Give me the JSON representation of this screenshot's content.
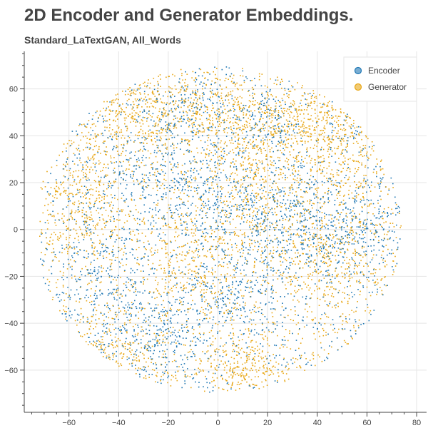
{
  "page": {
    "title": "2D Encoder and Generator Embeddings.",
    "subtitle": "Standard_LaTextGAN, All_Words"
  },
  "chart_data": {
    "type": "scatter",
    "title": "2D Encoder and Generator Embeddings.",
    "subtitle": "Standard_LaTextGAN, All_Words",
    "xlabel": "",
    "ylabel": "",
    "xlim": [
      -78,
      84
    ],
    "ylim": [
      -78,
      76
    ],
    "x_ticks": [
      -60,
      -40,
      -20,
      0,
      20,
      40,
      60,
      80
    ],
    "y_ticks": [
      -60,
      -40,
      -20,
      0,
      20,
      40,
      60
    ],
    "x_tick_labels": [
      "−60",
      "−40",
      "−20",
      "0",
      "20",
      "40",
      "60",
      "80"
    ],
    "y_tick_labels": [
      "−60",
      "−40",
      "−20",
      "0",
      "20",
      "40",
      "60"
    ],
    "grid": true,
    "legend_position": "top-right",
    "colors": {
      "encoder": "#1f77b4",
      "generator": "#e8a716",
      "grid": "#e5e5e5",
      "axis": "#444444"
    },
    "series": [
      {
        "name": "Encoder",
        "color": "#1f77b4",
        "approx_points": 9000,
        "note_regions": [
          {
            "cx": -45,
            "cy": -25,
            "sx": 13,
            "sy": 16,
            "w": 3.0
          },
          {
            "cx": -20,
            "cy": -45,
            "sx": 10,
            "sy": 10,
            "w": 2.0
          },
          {
            "cx": 0,
            "cy": 15,
            "sx": 16,
            "sy": 14,
            "w": 3.0
          },
          {
            "cx": -10,
            "cy": 50,
            "sx": 10,
            "sy": 8,
            "w": 1.5
          },
          {
            "cx": 30,
            "cy": 0,
            "sx": 12,
            "sy": 12,
            "w": 2.2
          },
          {
            "cx": 58,
            "cy": 0,
            "sx": 10,
            "sy": 12,
            "w": 2.5
          },
          {
            "cx": 10,
            "cy": -30,
            "sx": 10,
            "sy": 8,
            "w": 1.5
          },
          {
            "cx": 20,
            "cy": 45,
            "sx": 6,
            "sy": 8,
            "w": 0.8
          },
          {
            "cx": -30,
            "cy": 20,
            "sx": 12,
            "sy": 12,
            "w": 1.5
          }
        ]
      },
      {
        "name": "Generator",
        "color": "#e8a716",
        "approx_points": 9000,
        "note_regions": [
          {
            "cx": -30,
            "cy": 50,
            "sx": 14,
            "sy": 10,
            "w": 2.5
          },
          {
            "cx": 30,
            "cy": 45,
            "sx": 14,
            "sy": 12,
            "w": 2.5
          },
          {
            "cx": 50,
            "cy": 35,
            "sx": 12,
            "sy": 12,
            "w": 1.8
          },
          {
            "cx": 45,
            "cy": -10,
            "sx": 14,
            "sy": 14,
            "w": 2.2
          },
          {
            "cx": 10,
            "cy": -60,
            "sx": 10,
            "sy": 7,
            "w": 1.6
          },
          {
            "cx": -45,
            "cy": -55,
            "sx": 12,
            "sy": 8,
            "w": 1.2
          },
          {
            "cx": -55,
            "cy": 10,
            "sx": 10,
            "sy": 16,
            "w": 2.0
          },
          {
            "cx": 15,
            "cy": 10,
            "sx": 14,
            "sy": 16,
            "w": 2.2
          },
          {
            "cx": -15,
            "cy": -15,
            "sx": 12,
            "sy": 12,
            "w": 1.5
          },
          {
            "cx": 0,
            "cy": 50,
            "sx": 8,
            "sy": 8,
            "w": 1.2
          }
        ]
      }
    ]
  }
}
